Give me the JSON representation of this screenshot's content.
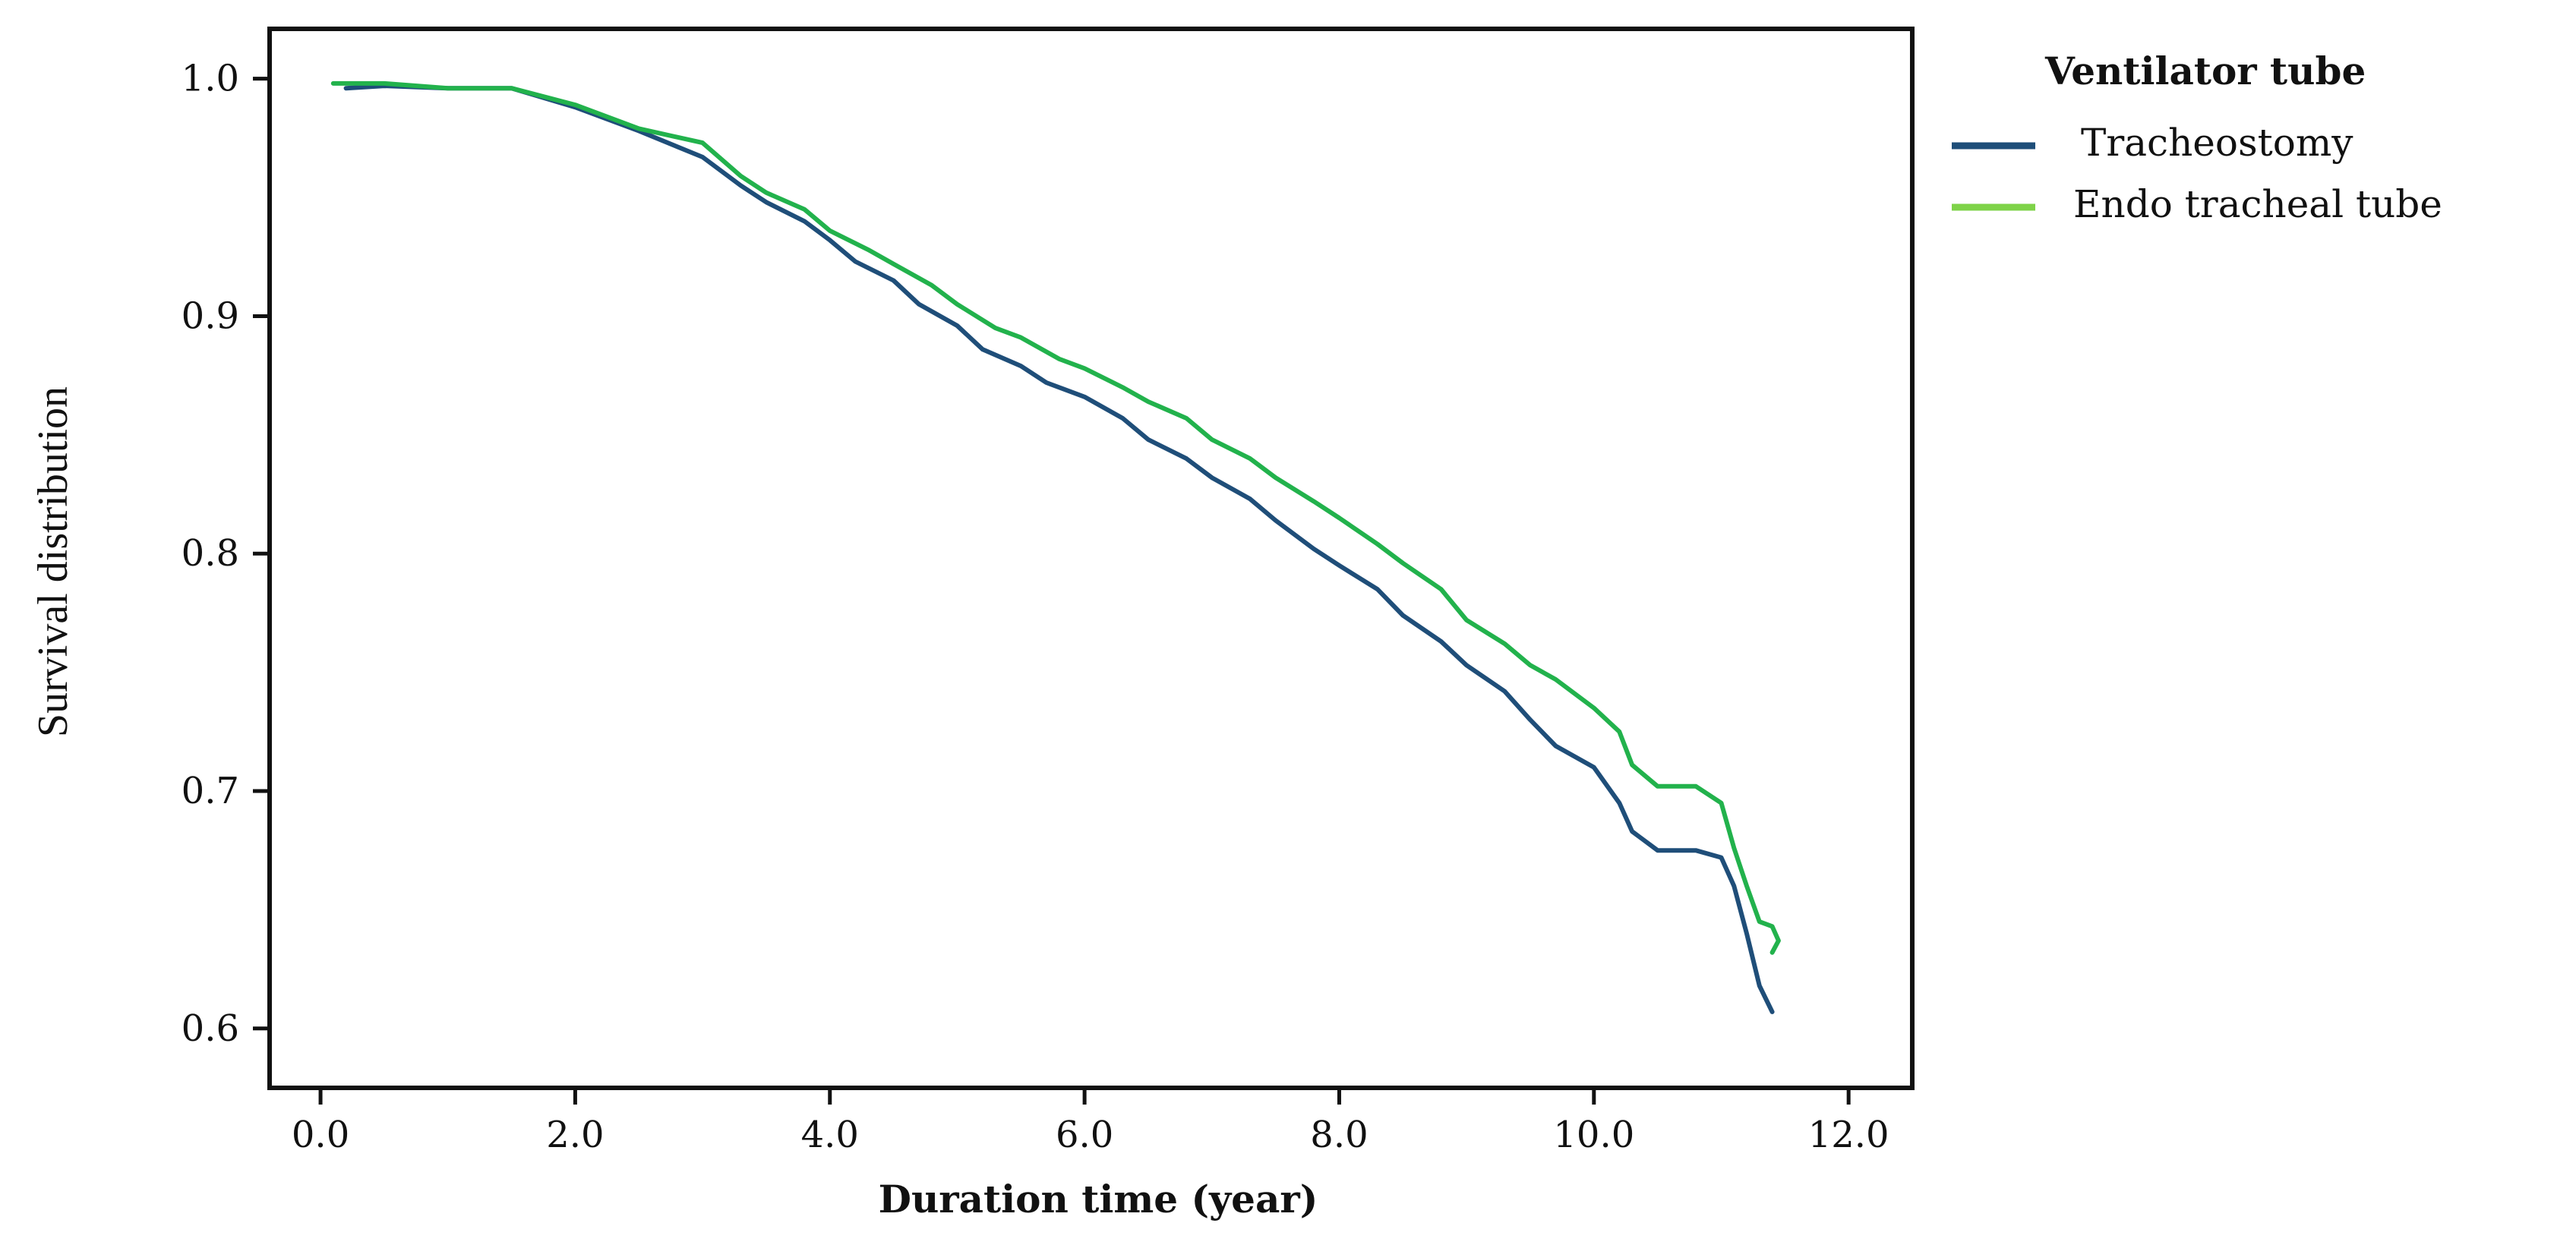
{
  "chart_data": {
    "type": "line",
    "title": "",
    "xlabel": "Duration time (year)",
    "ylabel": "Survival distribution",
    "xlim": [
      -0.4,
      12.5
    ],
    "ylim": [
      0.575,
      1.021
    ],
    "xticks": [
      0.0,
      2.0,
      4.0,
      6.0,
      8.0,
      10.0,
      12.0
    ],
    "xtick_labels": [
      "0.0",
      "2.0",
      "4.0",
      "6.0",
      "8.0",
      "10.0",
      "12.0"
    ],
    "yticks": [
      0.6,
      0.7,
      0.8,
      0.9,
      1.0
    ],
    "ytick_labels": [
      "0.6",
      "0.7",
      "0.8",
      "0.9",
      "1.0"
    ],
    "grid": false,
    "legend": {
      "title": "Ventilator tube",
      "placement": "outside-top-right",
      "entries": [
        {
          "label": "Tracheostomy",
          "color": "#1f4e79"
        },
        {
          "label": "Endo tracheal tube",
          "color": "#7ed348"
        }
      ]
    },
    "series": [
      {
        "name": "Tracheostomy",
        "color": "#1f4e79",
        "x": [
          0.2,
          0.5,
          1.0,
          1.5,
          2.0,
          2.5,
          3.0,
          3.3,
          3.5,
          3.8,
          4.0,
          4.2,
          4.5,
          4.7,
          5.0,
          5.2,
          5.5,
          5.7,
          6.0,
          6.3,
          6.5,
          6.8,
          7.0,
          7.3,
          7.5,
          7.8,
          8.0,
          8.3,
          8.5,
          8.8,
          9.0,
          9.3,
          9.5,
          9.7,
          10.0,
          10.2,
          10.3,
          10.5,
          10.8,
          11.0,
          11.1,
          11.2,
          11.3,
          11.4
        ],
        "y": [
          0.996,
          0.997,
          0.996,
          0.996,
          0.988,
          0.978,
          0.967,
          0.955,
          0.948,
          0.94,
          0.932,
          0.923,
          0.915,
          0.905,
          0.896,
          0.886,
          0.879,
          0.872,
          0.866,
          0.857,
          0.848,
          0.84,
          0.832,
          0.823,
          0.814,
          0.802,
          0.795,
          0.785,
          0.774,
          0.763,
          0.753,
          0.742,
          0.73,
          0.719,
          0.71,
          0.695,
          0.683,
          0.675,
          0.675,
          0.672,
          0.66,
          0.64,
          0.618,
          0.607
        ]
      },
      {
        "name": "Endo tracheal tube",
        "color": "#22b24c",
        "x": [
          0.1,
          0.5,
          1.0,
          1.5,
          2.0,
          2.5,
          3.0,
          3.3,
          3.5,
          3.8,
          4.0,
          4.3,
          4.5,
          4.8,
          5.0,
          5.3,
          5.5,
          5.8,
          6.0,
          6.3,
          6.5,
          6.8,
          7.0,
          7.3,
          7.5,
          7.8,
          8.0,
          8.3,
          8.5,
          8.8,
          9.0,
          9.3,
          9.5,
          9.7,
          10.0,
          10.2,
          10.3,
          10.5,
          10.8,
          11.0,
          11.1,
          11.2,
          11.3,
          11.4,
          11.45,
          11.4
        ],
        "y": [
          0.998,
          0.998,
          0.996,
          0.996,
          0.989,
          0.979,
          0.973,
          0.959,
          0.952,
          0.945,
          0.936,
          0.928,
          0.922,
          0.913,
          0.905,
          0.895,
          0.891,
          0.882,
          0.878,
          0.87,
          0.864,
          0.857,
          0.848,
          0.84,
          0.832,
          0.822,
          0.815,
          0.804,
          0.796,
          0.785,
          0.772,
          0.762,
          0.753,
          0.747,
          0.735,
          0.725,
          0.711,
          0.702,
          0.702,
          0.695,
          0.676,
          0.66,
          0.645,
          0.643,
          0.637,
          0.632
        ]
      }
    ]
  }
}
